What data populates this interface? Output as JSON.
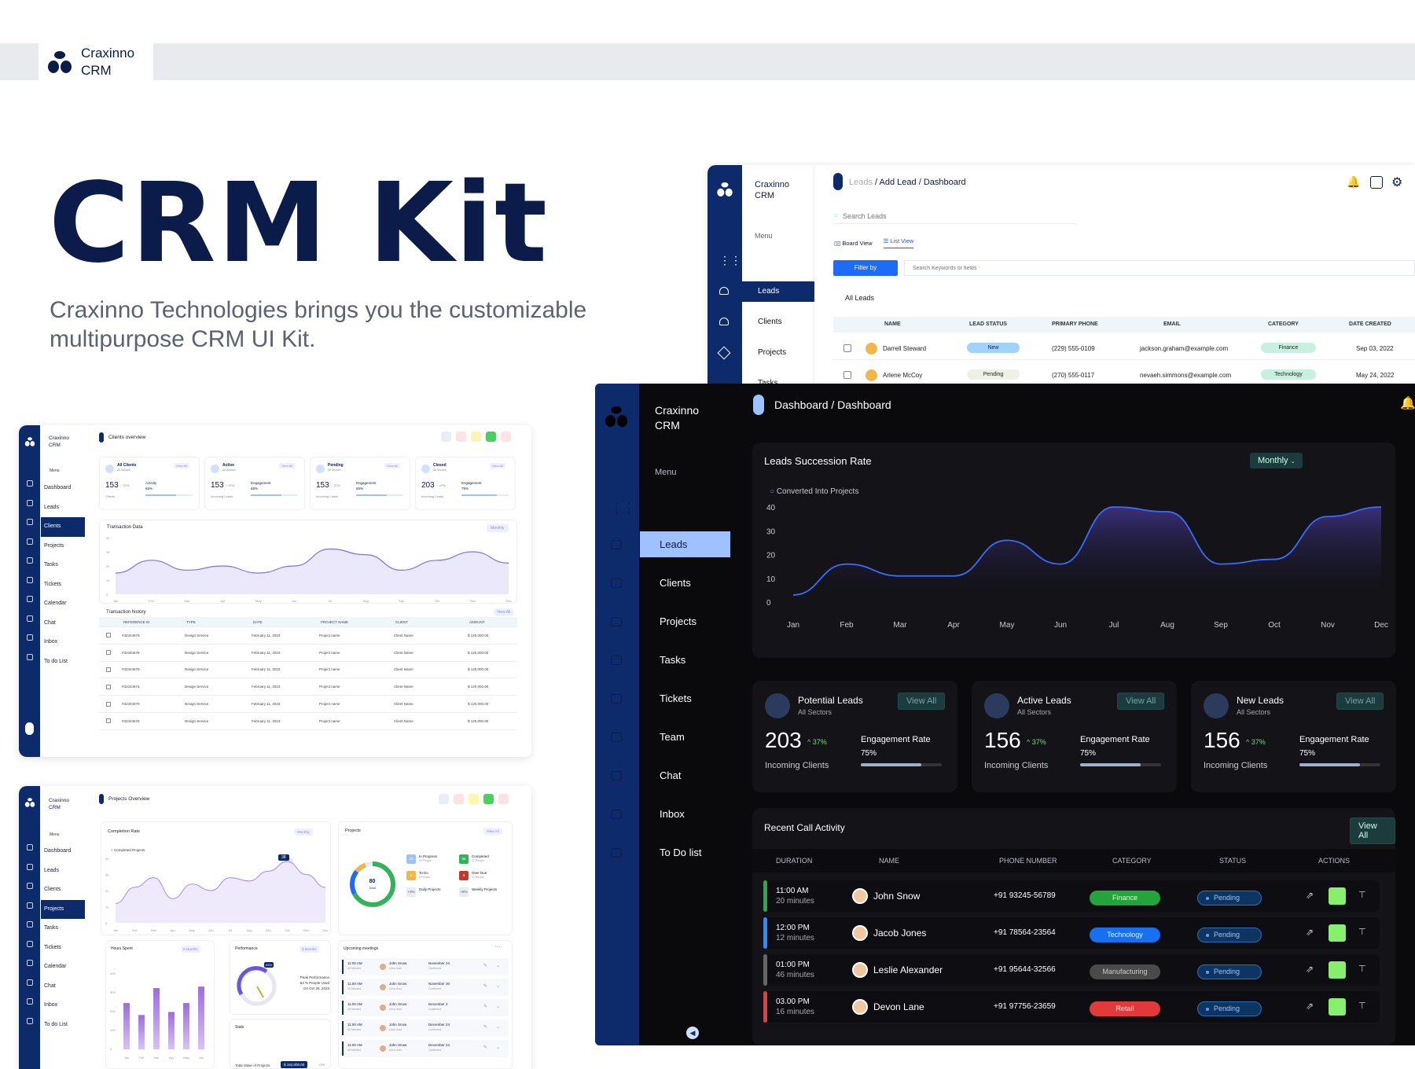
{
  "brand": {
    "name_line1": "Craxinno",
    "name_line2": "CRM"
  },
  "hero": {
    "title": "CRM Kit",
    "subtitle": "Craxinno Technologies brings you the customizable multipurpose CRM UI Kit."
  },
  "colors": {
    "navy": "#0d2a6b",
    "dark_bg": "#0a0a0d",
    "panel": "#131318",
    "accent_light": "#9fc2ff",
    "action_green": "#86ef6c"
  },
  "clients_screen": {
    "brand_line1": "Craxinno",
    "brand_line2": "CRM",
    "title": "Clients overview",
    "menu_label": "Menu",
    "menu": [
      "Dashboard",
      "Leads",
      "Clients",
      "Projects",
      "Tasks",
      "Tickets",
      "Calendar",
      "Chat",
      "Inbox",
      "To do List"
    ],
    "active": "Clients",
    "stats": [
      {
        "title": "All Clients",
        "sub": "All Sectors",
        "value": "153",
        "delta": "~ 37%",
        "foot": "Clients",
        "metric": "Activity",
        "metric_value": "65%"
      },
      {
        "title": "Active",
        "sub": "All Sectors",
        "value": "153",
        "delta": "~ 37%",
        "foot": "Incoming Leads",
        "metric": "Engagement",
        "metric_value": "65%"
      },
      {
        "title": "Pending",
        "sub": "All Sectors",
        "value": "153",
        "delta": "~ 37%",
        "foot": "Incoming Leads",
        "metric": "Engagement",
        "metric_value": "65%"
      },
      {
        "title": "Closed",
        "sub": "All Sectors",
        "value": "203",
        "delta": "~ 47%",
        "foot": "Incoming Leads",
        "metric": "Engagement",
        "metric_value": "75%"
      }
    ],
    "view_all": "View All",
    "chart_title": "Transaction Data",
    "chart_filter": "Monthly",
    "chart_yticks": [
      "40",
      "30",
      "20",
      "10",
      "0"
    ],
    "months": [
      "Jan",
      "Feb",
      "Mar",
      "Apr",
      "May",
      "Jun",
      "Jul",
      "Aug",
      "Sep",
      "Oct",
      "Nov",
      "Dec"
    ],
    "history_title": "Transaction history",
    "history_cols": [
      "REFERENCE ID",
      "TYPE",
      "DATE",
      "PROJECT NAME",
      "CLIENT",
      "AMOUNT"
    ],
    "history_rows": [
      [
        "#32344679",
        "Design Service",
        "February 11, 2023",
        "Project name",
        "Client Name",
        "$ 120,000.00"
      ],
      [
        "#32344679",
        "Design Service",
        "February 11, 2023",
        "Project name",
        "Client Name",
        "$ 120,000.00"
      ],
      [
        "#32344679",
        "Design Service",
        "February 11, 2023",
        "Project name",
        "Client Name",
        "$ 120,000.00"
      ],
      [
        "#32344674",
        "Design Service",
        "February 11, 2023",
        "Project name",
        "Client Name",
        "$ 120,000.00"
      ],
      [
        "#32344679",
        "Design Service",
        "February 11, 2023",
        "Project name",
        "Client Name",
        "$ 120,000.00"
      ],
      [
        "#32344679",
        "Design Service",
        "February 11, 2023",
        "Project name",
        "Client Name",
        "$ 120,000.00"
      ]
    ]
  },
  "projects_screen": {
    "brand_line1": "Craxinno",
    "brand_line2": "CRM",
    "title": "Projects Overview",
    "menu_label": "Menu",
    "menu": [
      "Dashboard",
      "Leads",
      "Clients",
      "Projects",
      "Tasks",
      "Tickets",
      "Calendar",
      "Chat",
      "Inbox",
      "To do List"
    ],
    "active": "Projects",
    "completion_title": "Completion Rate",
    "completion_filter": "Monthly",
    "completion_legend": "Completed Projects",
    "completion_tag": "38",
    "projects_title": "Projects",
    "projects_view_all": "View All",
    "donut_value": "80",
    "donut_label": "Total",
    "project_stats": [
      {
        "value": "15",
        "label": "In Progress",
        "sub": "54 People"
      },
      {
        "value": "56",
        "label": "Completed",
        "sub": "21 People"
      },
      {
        "value": "6",
        "label": "To Do",
        "sub": "8 People"
      },
      {
        "value": "3",
        "label": "Over Due",
        "sub": "21 People"
      },
      {
        "value": "+3%",
        "label": "Daily Projects"
      },
      {
        "value": "+8%",
        "label": "Weekly Projects"
      }
    ],
    "hours_title": "Hours Spent",
    "hours_filter": "6 Months",
    "hours_months": [
      "Jan",
      "Feb",
      "Mar",
      "Apr",
      "May",
      "Jun"
    ],
    "hours_values": [
      0.62,
      0.46,
      0.82,
      0.5,
      0.62,
      0.84
    ],
    "performance_title": "Performance",
    "performance_filter": "6 Months",
    "performance_value": "63%",
    "performance_label": "Peak Performance",
    "performance_text": "63 % People Used",
    "performance_date": "On Oct 26, 2023",
    "stats_title": "Stats",
    "stats_label": "Total Value of Projects",
    "stats_value": "$ 152,000.00",
    "stats_delta": "+2%",
    "meetings_title": "Upcoming meetings",
    "meetings": [
      {
        "time": "11:00 AM",
        "dur": "45 Minutes",
        "name": "John Snow",
        "sub": "UI/ux lead",
        "date": "November 24",
        "status": "Confirmed"
      },
      {
        "time": "11:00 AM",
        "dur": "30 Minutes",
        "name": "John Snow",
        "sub": "UI/ux lead",
        "date": "November 30",
        "status": "Confirmed"
      },
      {
        "time": "11:00 AM",
        "dur": "45 Minutes",
        "name": "John Snow",
        "sub": "UI/ux lead",
        "date": "December 2",
        "status": "Confirmed"
      },
      {
        "time": "11:00 AM",
        "dur": "45 Minutes",
        "name": "John Snow",
        "sub": "UI/ux lead",
        "date": "December 24",
        "status": "Confirmed"
      },
      {
        "time": "11:00 AM",
        "dur": "45 Minutes",
        "name": "John Snow",
        "sub": "UI/ux lead",
        "date": "December 24",
        "status": "Confirmed"
      }
    ]
  },
  "leads_screen": {
    "brand_line1": "Craxinno",
    "brand_line2": "CRM",
    "menu_label": "Menu",
    "menu": [
      "Leads",
      "Clients",
      "Projects",
      "Tasks"
    ],
    "active": "Leads",
    "crumb_1": "Leads",
    "crumb_2": "Add Lead",
    "crumb_3": "Dashboard",
    "search_placeholder": "Search Leads",
    "board_view": "Board View",
    "list_view": "List View",
    "filter_btn": "Filter by",
    "keyword_placeholder": "Search Keywords or fields",
    "section": "All Leads",
    "cols": [
      "NAME",
      "LEAD STATUS",
      "PRIMARY PHONE",
      "EMAIL",
      "CATEGORY",
      "DATE CREATED"
    ],
    "rows": [
      {
        "name": "Darrell Steward",
        "status": "New",
        "phone": "(229) 555-0109",
        "email": "jackson.graham@example.com",
        "category": "Finance",
        "date": "Sep 03, 2022"
      },
      {
        "name": "Arlene McCoy",
        "status": "Pending",
        "phone": "(270) 555-0117",
        "email": "nevaeh.simmons@example.com",
        "category": "Technology",
        "date": "May 24, 2022"
      }
    ]
  },
  "dark_screen": {
    "brand_line1": "Craxinno",
    "brand_line2": "CRM",
    "menu_label": "Menu",
    "menu": [
      "Leads",
      "Clients",
      "Projects",
      "Tasks",
      "Tickets",
      "Team",
      "Chat",
      "Inbox",
      "To Do list"
    ],
    "active": "Leads",
    "crumb_1": "Dashboard",
    "crumb_2": "Dashboard",
    "chart_title": "Leads Succession Rate",
    "chart_filter": "Monthly",
    "legend": "Converted Into Projects",
    "kpis": [
      {
        "title": "Potential Leads",
        "sub": "All Sectors",
        "value": "203",
        "delta": "37%",
        "foot": "Incoming Clients",
        "metric": "Engagement Rate",
        "metric_value": "75%",
        "view": "View All"
      },
      {
        "title": "Active Leads",
        "sub": "All Sectors",
        "value": "156",
        "delta": "37%",
        "foot": "Incoming Clients",
        "metric": "Engagement Rate",
        "metric_value": "75%",
        "view": "View All"
      },
      {
        "title": "New Leads",
        "sub": "All Sectors",
        "value": "156",
        "delta": "37%",
        "foot": "Incoming Clients",
        "metric": "Engagement Rate",
        "metric_value": "75%",
        "view": "View All"
      }
    ],
    "calls_title": "Recent Call Activity",
    "calls_view_all": "View All",
    "calls_cols": [
      "DURATION",
      "NAME",
      "PHONE NUMBER",
      "CATEGORY",
      "STATUS",
      "ACTIONS"
    ],
    "calls": [
      {
        "time": "11:00 AM",
        "dur": "20 minutes",
        "name": "John Snow",
        "phone": "+91 93245-56789",
        "category": "Finance",
        "status": "Pending",
        "bar": "#2ea84a",
        "cat_bg": "#23a53b",
        "cat_fg": "#d9ffd9"
      },
      {
        "time": "12:00 PM",
        "dur": "12 minutes",
        "name": "Jacob Jones",
        "phone": "+91 78564-23564",
        "category": "Technology",
        "status": "Pending",
        "bar": "#2a8cff",
        "cat_bg": "#1670f0",
        "cat_fg": "#e6f0ff"
      },
      {
        "time": "01:00 PM",
        "dur": "46 minutes",
        "name": "Leslie Alexander",
        "phone": "+91 95644-32566",
        "category": "Manufacturing",
        "status": "Pending",
        "bar": "#666",
        "cat_bg": "#4a4a4a",
        "cat_fg": "#ccc"
      },
      {
        "time": "03.00 PM",
        "dur": "16 minutes",
        "name": "Devon Lane",
        "phone": "+91 97756-23659",
        "category": "Retail",
        "status": "Pending",
        "bar": "#e04040",
        "cat_bg": "#e23a3a",
        "cat_fg": "#ffe0e0"
      }
    ]
  },
  "chart_data": [
    {
      "type": "line",
      "title": "Leads Succession Rate",
      "categories": [
        "Jan",
        "Feb",
        "Mar",
        "Apr",
        "May",
        "Jun",
        "Jul",
        "Aug",
        "Sep",
        "Oct",
        "Nov",
        "Dec"
      ],
      "series": [
        {
          "name": "Converted Into Projects",
          "values": [
            3,
            16,
            11,
            11,
            26,
            16,
            40,
            38,
            16,
            18,
            36,
            40
          ]
        }
      ],
      "ylim": [
        0,
        40
      ],
      "yticks": [
        0,
        10,
        20,
        30,
        40
      ],
      "grid": false
    },
    {
      "type": "line",
      "title": "Transaction Data",
      "categories": [
        "Jan",
        "Feb",
        "Mar",
        "Apr",
        "May",
        "Jun",
        "Jul",
        "Aug",
        "Sep",
        "Oct",
        "Nov",
        "Dec"
      ],
      "series": [
        {
          "values": [
            15,
            24,
            17,
            20,
            15,
            20,
            32,
            28,
            17,
            24,
            30,
            22
          ]
        }
      ],
      "ylim": [
        0,
        40
      ],
      "yticks": [
        0,
        10,
        20,
        30,
        40
      ]
    },
    {
      "type": "area",
      "title": "Completion Rate",
      "categories": [
        "Jan",
        "Feb",
        "Mar",
        "Apr",
        "May",
        "Jun",
        "Jul",
        "Aug",
        "Sep",
        "Oct",
        "Nov",
        "Dec"
      ],
      "series": [
        {
          "name": "Completed Projects",
          "values": [
            12,
            22,
            28,
            15,
            24,
            20,
            28,
            26,
            32,
            38,
            30,
            22
          ]
        }
      ],
      "ylim": [
        0,
        40
      ]
    },
    {
      "type": "bar",
      "title": "Hours Spent",
      "categories": [
        "Jan",
        "Feb",
        "Mar",
        "Apr",
        "May",
        "Jun"
      ],
      "values": [
        62,
        46,
        82,
        50,
        62,
        84
      ]
    }
  ]
}
